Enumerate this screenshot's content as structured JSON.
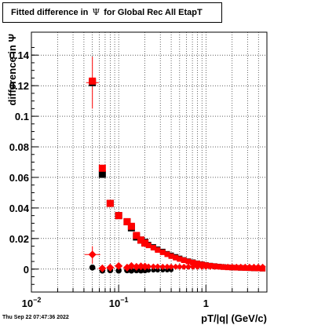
{
  "title": {
    "prefix": "Fitted difference in",
    "symbol": "Ψ",
    "suffix": "for Global Rec All EtapT"
  },
  "footer": {
    "timestamp": "Thu Sep 22 07:47:36 2022"
  },
  "colors": {
    "series_red": "#ff0000",
    "series_black": "#000000",
    "grid": "#000000"
  },
  "chart_data": {
    "type": "scatter",
    "title": "Fitted difference in Ψ for Global Rec All EtapT",
    "xlabel": "pT/|q| (GeV/c)",
    "ylabel": "difference in Ψ",
    "xscale": "log",
    "xlim": [
      0.01,
      5
    ],
    "ylim": [
      -0.015,
      0.155
    ],
    "grid": true,
    "x_ticks": [
      {
        "value": 0.01,
        "base": "10",
        "exp": "−2"
      },
      {
        "value": 0.1,
        "base": "10",
        "exp": "−1"
      },
      {
        "value": 1,
        "label": "1"
      }
    ],
    "y_ticks": [
      {
        "value": 0,
        "label": "0"
      },
      {
        "value": 0.02,
        "label": "0.02"
      },
      {
        "value": 0.04,
        "label": "0.04"
      },
      {
        "value": 0.06,
        "label": "0.06"
      },
      {
        "value": 0.08,
        "label": "0.08"
      },
      {
        "value": 0.1,
        "label": "0.1"
      },
      {
        "value": 0.12,
        "label": "0.12"
      },
      {
        "value": 0.14,
        "label": "0.14"
      }
    ],
    "series": [
      {
        "color": "#000000",
        "marker": "square",
        "x": [
          0.05,
          0.065,
          0.08,
          0.1,
          0.125,
          0.14,
          0.16,
          0.18,
          0.2,
          0.22,
          0.25,
          0.28,
          0.32,
          0.36,
          0.4,
          0.45,
          0.5,
          0.56,
          0.63,
          0.71,
          0.8,
          0.9,
          1.0,
          1.12,
          1.26,
          1.41,
          1.58,
          1.78,
          2.0,
          2.24,
          2.51,
          2.82,
          3.16,
          3.55,
          3.98,
          4.47
        ],
        "y": [
          0.122,
          0.062,
          0.043,
          0.035,
          0.031,
          0.027,
          0.021,
          0.019,
          0.0175,
          0.016,
          0.0145,
          0.013,
          0.0115,
          0.01,
          0.009,
          0.008,
          0.007,
          0.006,
          0.0052,
          0.0045,
          0.0038,
          0.0032,
          0.0027,
          0.0023,
          0.002,
          0.0017,
          0.0014,
          0.0012,
          0.001,
          0.0009,
          0.0008,
          0.0007,
          0.0006,
          0.0005,
          0.0004,
          0.0003
        ]
      },
      {
        "color": "#ff0000",
        "marker": "square",
        "x": [
          0.05,
          0.065,
          0.08,
          0.1,
          0.125,
          0.14,
          0.16,
          0.18,
          0.2,
          0.22,
          0.25,
          0.28,
          0.32,
          0.36,
          0.4,
          0.45,
          0.5,
          0.56,
          0.63,
          0.71,
          0.8,
          0.9,
          1.0,
          1.12,
          1.26,
          1.41,
          1.58,
          1.78,
          2.0,
          2.24,
          2.51,
          2.82,
          3.16,
          3.55,
          3.98,
          4.47
        ],
        "y": [
          0.123,
          0.066,
          0.043,
          0.035,
          0.031,
          0.028,
          0.022,
          0.019,
          0.017,
          0.0155,
          0.014,
          0.0125,
          0.011,
          0.0097,
          0.0085,
          0.0075,
          0.0066,
          0.0058,
          0.005,
          0.0043,
          0.0037,
          0.0031,
          0.0026,
          0.0022,
          0.0019,
          0.0016,
          0.0013,
          0.0011,
          0.001,
          0.0009,
          0.0008,
          0.0007,
          0.0006,
          0.0005,
          0.0004,
          0.0003
        ]
      },
      {
        "color": "#000000",
        "marker": "circle",
        "x": [
          0.05,
          0.065,
          0.08,
          0.1,
          0.125,
          0.14,
          0.16,
          0.18,
          0.2,
          0.22,
          0.25,
          0.28,
          0.32,
          0.36,
          0.4
        ],
        "y": [
          0.001,
          -0.001,
          -0.0008,
          -0.001,
          -0.0008,
          -0.001,
          -0.0008,
          -0.0009,
          -0.0008,
          -0.0008,
          -0.0007,
          -0.0007,
          -0.0006,
          -0.0006,
          -0.0005
        ]
      },
      {
        "color": "#ff0000",
        "marker": "diamond",
        "x": [
          0.05,
          0.065,
          0.08,
          0.1,
          0.125,
          0.14,
          0.16,
          0.18,
          0.2,
          0.22,
          0.25,
          0.28,
          0.32,
          0.36,
          0.4,
          0.45,
          0.5,
          0.56,
          0.63,
          0.71,
          0.8,
          0.9,
          1.0,
          1.12,
          1.26,
          1.41,
          1.58,
          1.78,
          2.0,
          2.24,
          2.51,
          2.82,
          3.16,
          3.55,
          3.98,
          4.47
        ],
        "y": [
          0.0095,
          0.0005,
          0.001,
          0.002,
          0.001,
          0.002,
          0.0015,
          0.0018,
          0.0017,
          0.0016,
          0.0016,
          0.0016,
          0.0015,
          0.0015,
          0.0015,
          0.0015,
          0.0015,
          0.0015,
          0.0015,
          0.0015,
          0.0015,
          0.0015,
          0.0015,
          0.0015,
          0.0015,
          0.0015,
          0.0015,
          0.0015,
          0.0015,
          0.0015,
          0.0015,
          0.0015,
          0.0015,
          0.0015,
          0.0015,
          0.0015
        ]
      }
    ],
    "error_bar": {
      "x": 0.05,
      "y": 0.122,
      "yerr": 0.017
    }
  }
}
